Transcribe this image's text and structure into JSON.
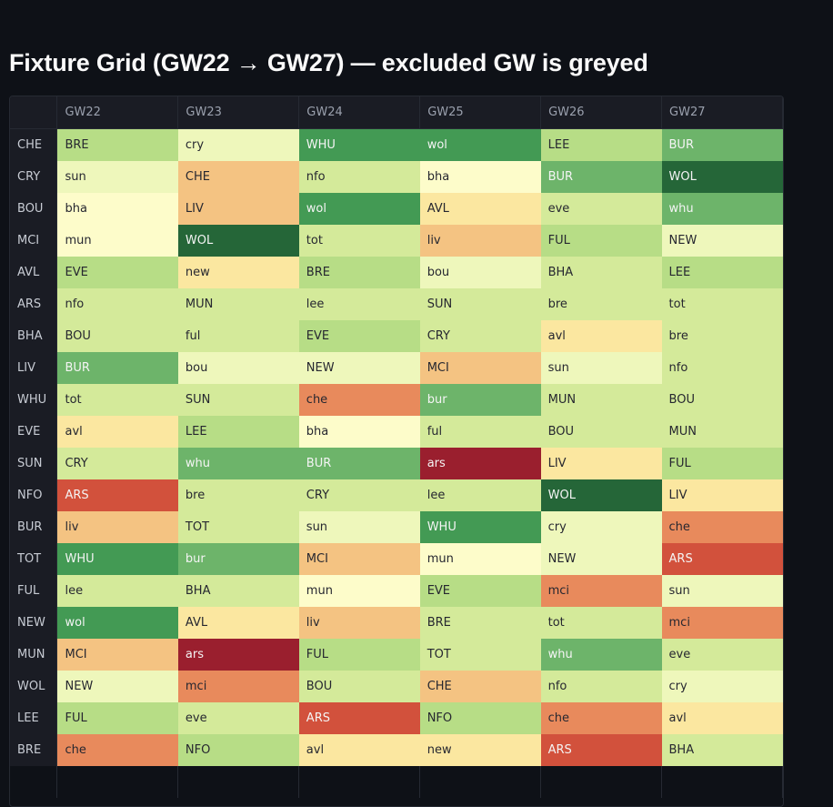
{
  "title": "Fixture Grid (GW22 → GW27) — excluded GW is greyed",
  "colors": {
    "background": "#0e1117",
    "header_bg": "#1a1c24",
    "scale": {
      "1": "#256638",
      "2": "#439a54",
      "3": "#6db46a",
      "4": "#b7dd86",
      "5": "#d4ea9a",
      "6": "#eef7bb",
      "7": "#fdfcca",
      "8": "#fbe7a0",
      "9": "#f4c382",
      "10": "#e88a5c",
      "11": "#d2513c",
      "12": "#9a1f2e"
    }
  },
  "grid": {
    "columns": [
      "GW22",
      "GW23",
      "GW24",
      "GW25",
      "GW26",
      "GW27"
    ],
    "rows": [
      {
        "team": "CHE",
        "cells": [
          {
            "label": "BRE",
            "level": 4
          },
          {
            "label": "cry",
            "level": 6
          },
          {
            "label": "WHU",
            "level": 2
          },
          {
            "label": "wol",
            "level": 2
          },
          {
            "label": "LEE",
            "level": 4
          },
          {
            "label": "BUR",
            "level": 3
          }
        ]
      },
      {
        "team": "CRY",
        "cells": [
          {
            "label": "sun",
            "level": 6
          },
          {
            "label": "CHE",
            "level": 9
          },
          {
            "label": "nfo",
            "level": 5
          },
          {
            "label": "bha",
            "level": 7
          },
          {
            "label": "BUR",
            "level": 3
          },
          {
            "label": "WOL",
            "level": 1
          }
        ]
      },
      {
        "team": "BOU",
        "cells": [
          {
            "label": "bha",
            "level": 7
          },
          {
            "label": "LIV",
            "level": 9
          },
          {
            "label": "wol",
            "level": 2
          },
          {
            "label": "AVL",
            "level": 8
          },
          {
            "label": "eve",
            "level": 5
          },
          {
            "label": "whu",
            "level": 3
          }
        ]
      },
      {
        "team": "MCI",
        "cells": [
          {
            "label": "mun",
            "level": 7
          },
          {
            "label": "WOL",
            "level": 1
          },
          {
            "label": "tot",
            "level": 5
          },
          {
            "label": "liv",
            "level": 9
          },
          {
            "label": "FUL",
            "level": 4
          },
          {
            "label": "NEW",
            "level": 6
          }
        ]
      },
      {
        "team": "AVL",
        "cells": [
          {
            "label": "EVE",
            "level": 4
          },
          {
            "label": "new",
            "level": 8
          },
          {
            "label": "BRE",
            "level": 4
          },
          {
            "label": "bou",
            "level": 6
          },
          {
            "label": "BHA",
            "level": 5
          },
          {
            "label": "LEE",
            "level": 4
          }
        ]
      },
      {
        "team": "ARS",
        "cells": [
          {
            "label": "nfo",
            "level": 5
          },
          {
            "label": "MUN",
            "level": 5
          },
          {
            "label": "lee",
            "level": 5
          },
          {
            "label": "SUN",
            "level": 5
          },
          {
            "label": "bre",
            "level": 5
          },
          {
            "label": "tot",
            "level": 5
          }
        ]
      },
      {
        "team": "BHA",
        "cells": [
          {
            "label": "BOU",
            "level": 5
          },
          {
            "label": "ful",
            "level": 5
          },
          {
            "label": "EVE",
            "level": 4
          },
          {
            "label": "CRY",
            "level": 5
          },
          {
            "label": "avl",
            "level": 8
          },
          {
            "label": "bre",
            "level": 5
          }
        ]
      },
      {
        "team": "LIV",
        "cells": [
          {
            "label": "BUR",
            "level": 3
          },
          {
            "label": "bou",
            "level": 6
          },
          {
            "label": "NEW",
            "level": 6
          },
          {
            "label": "MCI",
            "level": 9
          },
          {
            "label": "sun",
            "level": 6
          },
          {
            "label": "nfo",
            "level": 5
          }
        ]
      },
      {
        "team": "WHU",
        "cells": [
          {
            "label": "tot",
            "level": 5
          },
          {
            "label": "SUN",
            "level": 5
          },
          {
            "label": "che",
            "level": 10
          },
          {
            "label": "bur",
            "level": 3
          },
          {
            "label": "MUN",
            "level": 5
          },
          {
            "label": "BOU",
            "level": 5
          }
        ]
      },
      {
        "team": "EVE",
        "cells": [
          {
            "label": "avl",
            "level": 8
          },
          {
            "label": "LEE",
            "level": 4
          },
          {
            "label": "bha",
            "level": 7
          },
          {
            "label": "ful",
            "level": 5
          },
          {
            "label": "BOU",
            "level": 5
          },
          {
            "label": "MUN",
            "level": 5
          }
        ]
      },
      {
        "team": "SUN",
        "cells": [
          {
            "label": "CRY",
            "level": 5
          },
          {
            "label": "whu",
            "level": 3
          },
          {
            "label": "BUR",
            "level": 3
          },
          {
            "label": "ars",
            "level": 12
          },
          {
            "label": "LIV",
            "level": 8
          },
          {
            "label": "FUL",
            "level": 4
          }
        ]
      },
      {
        "team": "NFO",
        "cells": [
          {
            "label": "ARS",
            "level": 11
          },
          {
            "label": "bre",
            "level": 5
          },
          {
            "label": "CRY",
            "level": 5
          },
          {
            "label": "lee",
            "level": 5
          },
          {
            "label": "WOL",
            "level": 1
          },
          {
            "label": "LIV",
            "level": 8
          }
        ]
      },
      {
        "team": "BUR",
        "cells": [
          {
            "label": "liv",
            "level": 9
          },
          {
            "label": "TOT",
            "level": 5
          },
          {
            "label": "sun",
            "level": 6
          },
          {
            "label": "WHU",
            "level": 2
          },
          {
            "label": "cry",
            "level": 6
          },
          {
            "label": "che",
            "level": 10
          }
        ]
      },
      {
        "team": "TOT",
        "cells": [
          {
            "label": "WHU",
            "level": 2
          },
          {
            "label": "bur",
            "level": 3
          },
          {
            "label": "MCI",
            "level": 9
          },
          {
            "label": "mun",
            "level": 7
          },
          {
            "label": "NEW",
            "level": 6
          },
          {
            "label": "ARS",
            "level": 11
          }
        ]
      },
      {
        "team": "FUL",
        "cells": [
          {
            "label": "lee",
            "level": 5
          },
          {
            "label": "BHA",
            "level": 5
          },
          {
            "label": "mun",
            "level": 7
          },
          {
            "label": "EVE",
            "level": 4
          },
          {
            "label": "mci",
            "level": 10
          },
          {
            "label": "sun",
            "level": 6
          }
        ]
      },
      {
        "team": "NEW",
        "cells": [
          {
            "label": "wol",
            "level": 2
          },
          {
            "label": "AVL",
            "level": 8
          },
          {
            "label": "liv",
            "level": 9
          },
          {
            "label": "BRE",
            "level": 5
          },
          {
            "label": "tot",
            "level": 5
          },
          {
            "label": "mci",
            "level": 10
          }
        ]
      },
      {
        "team": "MUN",
        "cells": [
          {
            "label": "MCI",
            "level": 9
          },
          {
            "label": "ars",
            "level": 12
          },
          {
            "label": "FUL",
            "level": 4
          },
          {
            "label": "TOT",
            "level": 5
          },
          {
            "label": "whu",
            "level": 3
          },
          {
            "label": "eve",
            "level": 5
          }
        ]
      },
      {
        "team": "WOL",
        "cells": [
          {
            "label": "NEW",
            "level": 6
          },
          {
            "label": "mci",
            "level": 10
          },
          {
            "label": "BOU",
            "level": 5
          },
          {
            "label": "CHE",
            "level": 9
          },
          {
            "label": "nfo",
            "level": 5
          },
          {
            "label": "cry",
            "level": 6
          }
        ]
      },
      {
        "team": "LEE",
        "cells": [
          {
            "label": "FUL",
            "level": 4
          },
          {
            "label": "eve",
            "level": 5
          },
          {
            "label": "ARS",
            "level": 11
          },
          {
            "label": "NFO",
            "level": 4
          },
          {
            "label": "che",
            "level": 10
          },
          {
            "label": "avl",
            "level": 8
          }
        ]
      },
      {
        "team": "BRE",
        "cells": [
          {
            "label": "che",
            "level": 10
          },
          {
            "label": "NFO",
            "level": 4
          },
          {
            "label": "avl",
            "level": 8
          },
          {
            "label": "new",
            "level": 8
          },
          {
            "label": "ARS",
            "level": 11
          },
          {
            "label": "BHA",
            "level": 5
          }
        ]
      }
    ]
  }
}
